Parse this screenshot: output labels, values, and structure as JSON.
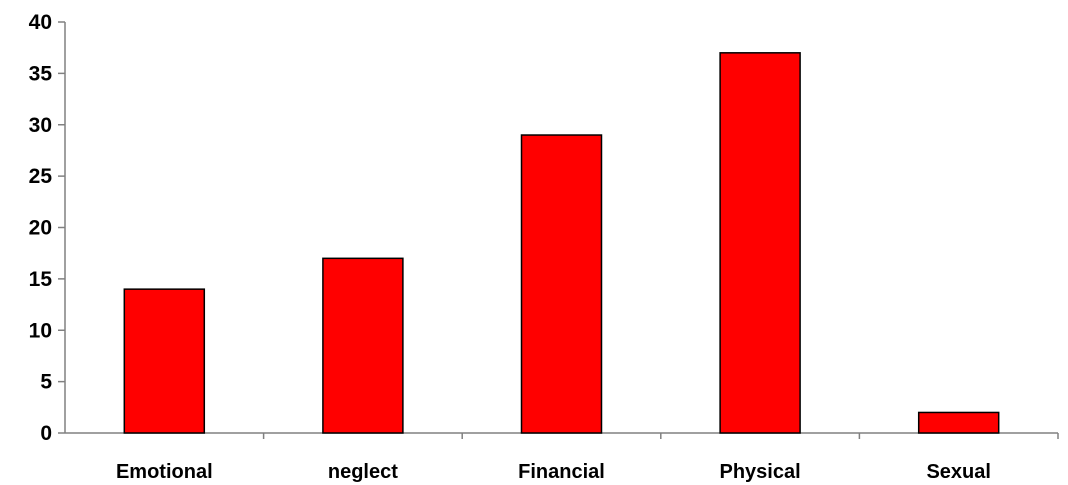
{
  "chart_data": {
    "type": "bar",
    "title": "",
    "xlabel": "",
    "ylabel": "",
    "categories": [
      "Emotional",
      "neglect",
      "Financial",
      "Physical",
      "Sexual"
    ],
    "values": [
      14,
      17,
      29,
      37,
      2
    ],
    "ylim": [
      0,
      40
    ],
    "yticks": [
      "0",
      "5",
      "10",
      "15",
      "20",
      "25",
      "30",
      "35",
      "40"
    ],
    "grid": false,
    "legend": "none",
    "bar_color": "#FF0000",
    "bar_edge_color": "#000000",
    "axis_color": "#808080"
  }
}
